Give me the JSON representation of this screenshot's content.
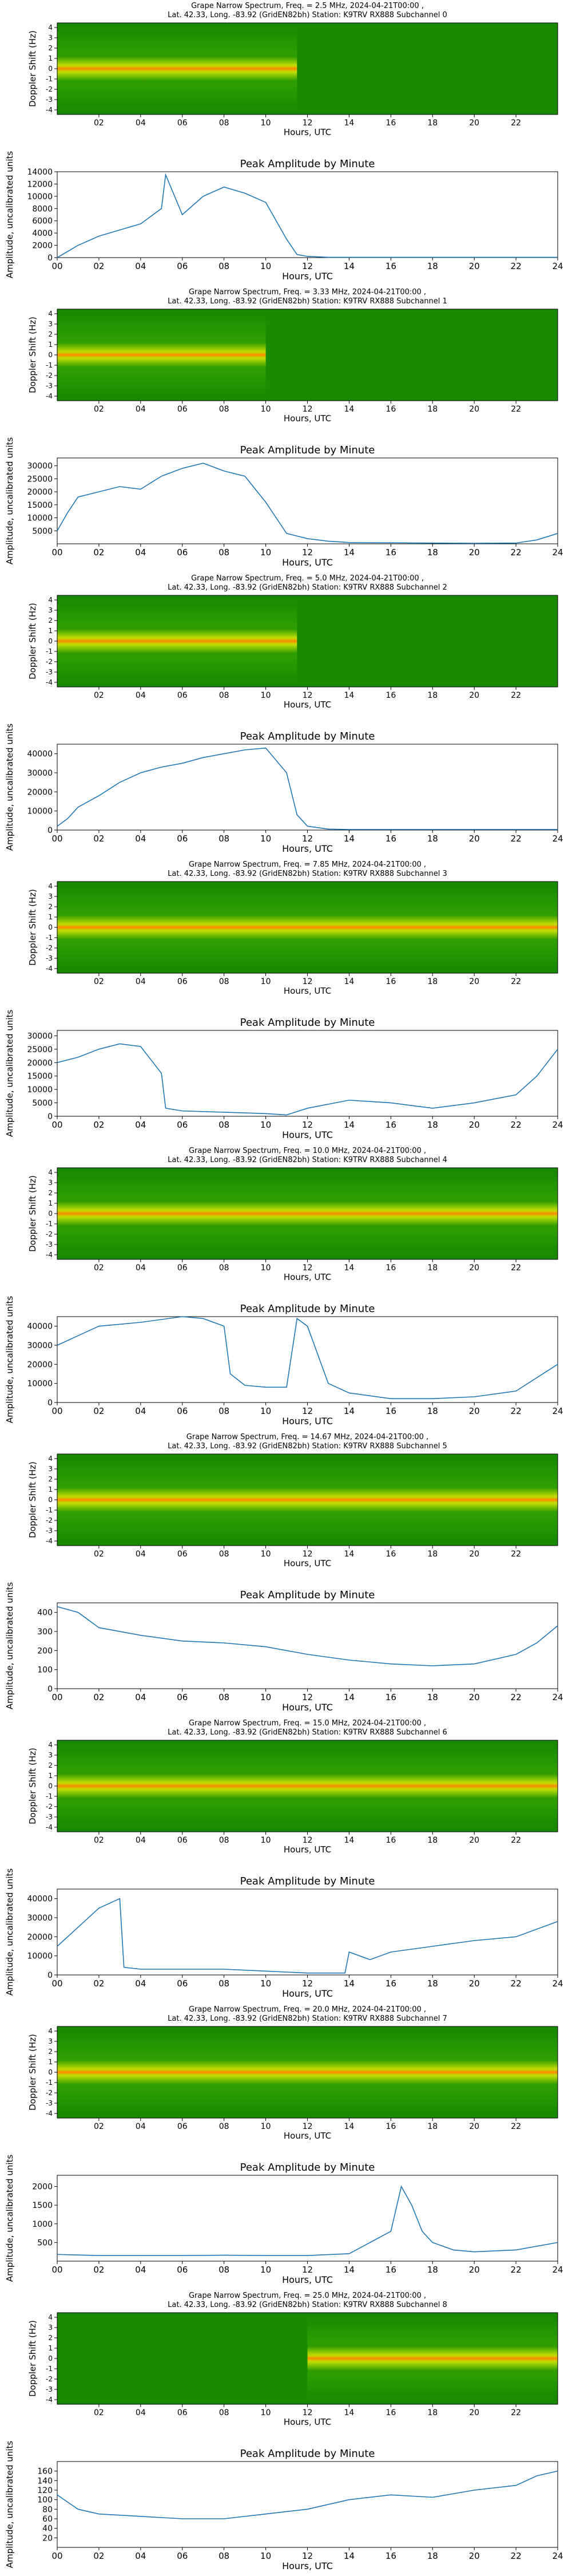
{
  "figure": {
    "station": "K9TRV RX888",
    "location": "Lat.  42.33, Long. -83.92 (GridEN82bh)",
    "date": "2024-04-21T00:00"
  },
  "colors": {
    "spectro_bg": "#1a8a00",
    "spectro_band": "#e6e600",
    "spectro_peak": "#ff8c00",
    "line": "#1f77b4",
    "axis": "#000000"
  },
  "chart_data": [
    {
      "type": "heatmap",
      "title_line1": "Grape Narrow Spectrum, Freq. = 2.5 MHz, 2024-04-21T00:00 ,",
      "title_line2": "Lat.  42.33, Long. -83.92 (GridEN82bh) Station: K9TRV RX888 Subchannel 0",
      "xlabel": "Hours, UTC",
      "ylabel": "Doppler Shift (Hz)",
      "x_ticks": [
        "02",
        "04",
        "06",
        "08",
        "10",
        "12",
        "14",
        "16",
        "18",
        "20",
        "22"
      ],
      "y_ticks": [
        "4",
        "3",
        "2",
        "1",
        "0",
        "-1",
        "-2",
        "-3",
        "-4"
      ],
      "xlim": [
        0,
        24
      ],
      "ylim": [
        -5,
        5
      ],
      "active_hours": [
        0,
        11.5
      ]
    },
    {
      "type": "line",
      "title": "Peak Amplitude by Minute",
      "xlabel": "Hours, UTC",
      "ylabel": "Amplitude, uncalibrated units",
      "x_ticks": [
        "00",
        "02",
        "04",
        "06",
        "08",
        "10",
        "12",
        "14",
        "16",
        "18",
        "20",
        "22",
        "24"
      ],
      "y_ticks": [
        "0",
        "2000",
        "4000",
        "6000",
        "8000",
        "10000",
        "12000",
        "14000"
      ],
      "ylim": [
        0,
        14000
      ],
      "x": [
        0,
        1,
        2,
        3,
        4,
        5,
        5.2,
        6,
        7,
        8,
        9,
        10,
        11,
        11.5,
        12,
        13,
        24
      ],
      "y": [
        0,
        2000,
        3500,
        4500,
        5500,
        8000,
        13500,
        7000,
        10000,
        11500,
        10500,
        9000,
        3000,
        500,
        200,
        50,
        50
      ]
    },
    {
      "type": "heatmap",
      "title_line1": "Grape Narrow Spectrum, Freq. = 3.33 MHz, 2024-04-21T00:00 ,",
      "title_line2": "Lat.  42.33, Long. -83.92 (GridEN82bh) Station: K9TRV RX888 Subchannel 1",
      "xlabel": "Hours, UTC",
      "ylabel": "Doppler Shift (Hz)",
      "x_ticks": [
        "02",
        "04",
        "06",
        "08",
        "10",
        "12",
        "14",
        "16",
        "18",
        "20",
        "22"
      ],
      "y_ticks": [
        "4",
        "3",
        "2",
        "1",
        "0",
        "-1",
        "-2",
        "-3",
        "-4"
      ],
      "xlim": [
        0,
        24
      ],
      "ylim": [
        -5,
        5
      ],
      "active_hours": [
        0,
        10
      ]
    },
    {
      "type": "line",
      "title": "Peak Amplitude by Minute",
      "xlabel": "Hours, UTC",
      "ylabel": "Amplitude, uncalibrated units",
      "x_ticks": [
        "00",
        "02",
        "04",
        "06",
        "08",
        "10",
        "12",
        "14",
        "16",
        "18",
        "20",
        "22",
        "24"
      ],
      "y_ticks": [
        "5000",
        "10000",
        "15000",
        "20000",
        "25000",
        "30000"
      ],
      "ylim": [
        0,
        33000
      ],
      "x": [
        0,
        0.5,
        1,
        2,
        3,
        4,
        5,
        6,
        7,
        8,
        9,
        10,
        11,
        12,
        13,
        14,
        20,
        22,
        23,
        24
      ],
      "y": [
        5000,
        12000,
        18000,
        20000,
        22000,
        21000,
        26000,
        29000,
        31000,
        28000,
        26000,
        16000,
        4000,
        2000,
        1000,
        500,
        200,
        300,
        1500,
        4000
      ]
    },
    {
      "type": "heatmap",
      "title_line1": "Grape Narrow Spectrum, Freq. = 5.0 MHz, 2024-04-21T00:00 ,",
      "title_line2": "Lat.  42.33, Long. -83.92 (GridEN82bh) Station: K9TRV RX888 Subchannel 2",
      "xlabel": "Hours, UTC",
      "ylabel": "Doppler Shift (Hz)",
      "x_ticks": [
        "02",
        "04",
        "06",
        "08",
        "10",
        "12",
        "14",
        "16",
        "18",
        "20",
        "22"
      ],
      "y_ticks": [
        "4",
        "3",
        "2",
        "1",
        "0",
        "-1",
        "-2",
        "-3",
        "-4"
      ],
      "xlim": [
        0,
        24
      ],
      "ylim": [
        -5,
        5
      ],
      "active_hours": [
        0,
        11.5
      ]
    },
    {
      "type": "line",
      "title": "Peak Amplitude by Minute",
      "xlabel": "Hours, UTC",
      "ylabel": "Amplitude, uncalibrated units",
      "x_ticks": [
        "00",
        "02",
        "04",
        "06",
        "08",
        "10",
        "12",
        "14",
        "16",
        "18",
        "20",
        "22",
        "24"
      ],
      "y_ticks": [
        "0",
        "10000",
        "20000",
        "30000",
        "40000"
      ],
      "ylim": [
        0,
        45000
      ],
      "x": [
        0,
        0.5,
        1,
        2,
        3,
        4,
        5,
        6,
        7,
        8,
        9,
        10,
        11,
        11.5,
        12,
        13,
        14,
        24
      ],
      "y": [
        2000,
        6000,
        12000,
        18000,
        25000,
        30000,
        33000,
        35000,
        38000,
        40000,
        42000,
        43000,
        30000,
        8000,
        2000,
        500,
        300,
        300
      ]
    },
    {
      "type": "heatmap",
      "title_line1": "Grape Narrow Spectrum, Freq. = 7.85 MHz, 2024-04-21T00:00 ,",
      "title_line2": "Lat.  42.33, Long. -83.92 (GridEN82bh) Station: K9TRV RX888 Subchannel 3",
      "xlabel": "Hours, UTC",
      "ylabel": "Doppler Shift (Hz)",
      "x_ticks": [
        "02",
        "04",
        "06",
        "08",
        "10",
        "12",
        "14",
        "16",
        "18",
        "20",
        "22"
      ],
      "y_ticks": [
        "4",
        "3",
        "2",
        "1",
        "0",
        "-1",
        "-2",
        "-3",
        "-4"
      ],
      "xlim": [
        0,
        24
      ],
      "ylim": [
        -5,
        5
      ],
      "active_hours": [
        0,
        24
      ]
    },
    {
      "type": "line",
      "title": "Peak Amplitude by Minute",
      "xlabel": "Hours, UTC",
      "ylabel": "Amplitude, uncalibrated units",
      "x_ticks": [
        "00",
        "02",
        "04",
        "06",
        "08",
        "10",
        "12",
        "14",
        "16",
        "18",
        "20",
        "22",
        "24"
      ],
      "y_ticks": [
        "0",
        "5000",
        "10000",
        "15000",
        "20000",
        "25000",
        "30000"
      ],
      "ylim": [
        0,
        32000
      ],
      "x": [
        0,
        1,
        2,
        3,
        4,
        5,
        5.2,
        6,
        8,
        10,
        11,
        12,
        14,
        16,
        18,
        20,
        22,
        23,
        24
      ],
      "y": [
        20000,
        22000,
        25000,
        27000,
        26000,
        16000,
        3000,
        2000,
        1500,
        1000,
        500,
        3000,
        6000,
        5000,
        3000,
        5000,
        8000,
        15000,
        25000
      ]
    },
    {
      "type": "heatmap",
      "title_line1": "Grape Narrow Spectrum, Freq. = 10.0 MHz, 2024-04-21T00:00 ,",
      "title_line2": "Lat.  42.33, Long. -83.92 (GridEN82bh) Station: K9TRV RX888 Subchannel 4",
      "xlabel": "Hours, UTC",
      "ylabel": "Doppler Shift (Hz)",
      "x_ticks": [
        "02",
        "04",
        "06",
        "08",
        "10",
        "12",
        "14",
        "16",
        "18",
        "20",
        "22"
      ],
      "y_ticks": [
        "4",
        "3",
        "2",
        "1",
        "0",
        "-1",
        "-2",
        "-3",
        "-4"
      ],
      "xlim": [
        0,
        24
      ],
      "ylim": [
        -5,
        5
      ],
      "active_hours": [
        0,
        24
      ]
    },
    {
      "type": "line",
      "title": "Peak Amplitude by Minute",
      "xlabel": "Hours, UTC",
      "ylabel": "Amplitude, uncalibrated units",
      "x_ticks": [
        "00",
        "02",
        "04",
        "06",
        "08",
        "10",
        "12",
        "14",
        "16",
        "18",
        "20",
        "22",
        "24"
      ],
      "y_ticks": [
        "0",
        "10000",
        "20000",
        "30000",
        "40000"
      ],
      "ylim": [
        0,
        45000
      ],
      "x": [
        0,
        1,
        2,
        4,
        6,
        7,
        8,
        8.3,
        9,
        10,
        11,
        11.5,
        12,
        13,
        14,
        16,
        18,
        20,
        22,
        24
      ],
      "y": [
        30000,
        35000,
        40000,
        42000,
        45000,
        44000,
        40000,
        15000,
        9000,
        8000,
        8000,
        44000,
        40000,
        10000,
        5000,
        2000,
        2000,
        3000,
        6000,
        20000
      ]
    },
    {
      "type": "heatmap",
      "title_line1": "Grape Narrow Spectrum, Freq. = 14.67 MHz, 2024-04-21T00:00 ,",
      "title_line2": "Lat.  42.33, Long. -83.92 (GridEN82bh) Station: K9TRV RX888 Subchannel 5",
      "xlabel": "Hours, UTC",
      "ylabel": "Doppler Shift (Hz)",
      "x_ticks": [
        "02",
        "04",
        "06",
        "08",
        "10",
        "12",
        "14",
        "16",
        "18",
        "20",
        "22"
      ],
      "y_ticks": [
        "4",
        "3",
        "2",
        "1",
        "0",
        "-1",
        "-2",
        "-3",
        "-4"
      ],
      "xlim": [
        0,
        24
      ],
      "ylim": [
        -5,
        5
      ],
      "active_hours": [
        0,
        24
      ]
    },
    {
      "type": "line",
      "title": "Peak Amplitude by Minute",
      "xlabel": "Hours, UTC",
      "ylabel": "Amplitude, uncalibrated units",
      "x_ticks": [
        "00",
        "02",
        "04",
        "06",
        "08",
        "10",
        "12",
        "14",
        "16",
        "18",
        "20",
        "22",
        "24"
      ],
      "y_ticks": [
        "0",
        "100",
        "200",
        "300",
        "400"
      ],
      "ylim": [
        0,
        450
      ],
      "x": [
        0,
        1,
        2,
        4,
        6,
        8,
        10,
        12,
        14,
        16,
        18,
        20,
        22,
        23,
        24
      ],
      "y": [
        430,
        400,
        320,
        280,
        250,
        240,
        220,
        180,
        150,
        130,
        120,
        130,
        180,
        240,
        330
      ]
    },
    {
      "type": "heatmap",
      "title_line1": "Grape Narrow Spectrum, Freq. = 15.0 MHz, 2024-04-21T00:00 ,",
      "title_line2": "Lat.  42.33, Long. -83.92 (GridEN82bh) Station: K9TRV RX888 Subchannel 6",
      "xlabel": "Hours, UTC",
      "ylabel": "Doppler Shift (Hz)",
      "x_ticks": [
        "02",
        "04",
        "06",
        "08",
        "10",
        "12",
        "14",
        "16",
        "18",
        "20",
        "22"
      ],
      "y_ticks": [
        "4",
        "3",
        "2",
        "1",
        "0",
        "-1",
        "-2",
        "-3",
        "-4"
      ],
      "xlim": [
        0,
        24
      ],
      "ylim": [
        -5,
        5
      ],
      "active_hours": [
        0,
        24
      ]
    },
    {
      "type": "line",
      "title": "Peak Amplitude by Minute",
      "xlabel": "Hours, UTC",
      "ylabel": "Amplitude, uncalibrated units",
      "x_ticks": [
        "00",
        "02",
        "04",
        "06",
        "08",
        "10",
        "12",
        "14",
        "16",
        "18",
        "20",
        "22",
        "24"
      ],
      "y_ticks": [
        "0",
        "10000",
        "20000",
        "30000",
        "40000"
      ],
      "ylim": [
        0,
        45000
      ],
      "x": [
        0,
        1,
        2,
        3,
        3.2,
        4,
        6,
        8,
        10,
        12,
        13.8,
        14,
        15,
        16,
        18,
        20,
        22,
        24
      ],
      "y": [
        15000,
        25000,
        35000,
        40000,
        4000,
        3000,
        3000,
        3000,
        2000,
        1000,
        1000,
        12000,
        8000,
        12000,
        15000,
        18000,
        20000,
        28000
      ]
    },
    {
      "type": "heatmap",
      "title_line1": "Grape Narrow Spectrum, Freq. = 20.0 MHz, 2024-04-21T00:00 ,",
      "title_line2": "Lat.  42.33, Long. -83.92 (GridEN82bh) Station: K9TRV RX888 Subchannel 7",
      "xlabel": "Hours, UTC",
      "ylabel": "Doppler Shift (Hz)",
      "x_ticks": [
        "02",
        "04",
        "06",
        "08",
        "10",
        "12",
        "14",
        "16",
        "18",
        "20",
        "22"
      ],
      "y_ticks": [
        "4",
        "3",
        "2",
        "1",
        "0",
        "-1",
        "-2",
        "-3",
        "-4"
      ],
      "xlim": [
        0,
        24
      ],
      "ylim": [
        -5,
        5
      ],
      "active_hours": [
        0,
        24
      ]
    },
    {
      "type": "line",
      "title": "Peak Amplitude by Minute",
      "xlabel": "Hours, UTC",
      "ylabel": "Amplitude, uncalibrated units",
      "x_ticks": [
        "00",
        "02",
        "04",
        "06",
        "08",
        "10",
        "12",
        "14",
        "16",
        "18",
        "20",
        "22",
        "24"
      ],
      "y_ticks": [
        "500",
        "1000",
        "1500",
        "2000"
      ],
      "ylim": [
        0,
        2300
      ],
      "x": [
        0,
        2,
        4,
        6,
        8,
        10,
        12,
        14,
        15,
        16,
        16.5,
        17,
        17.5,
        18,
        19,
        20,
        22,
        24
      ],
      "y": [
        180,
        150,
        150,
        150,
        160,
        150,
        150,
        200,
        500,
        800,
        2000,
        1500,
        800,
        500,
        300,
        250,
        300,
        500
      ]
    },
    {
      "type": "heatmap",
      "title_line1": "Grape Narrow Spectrum, Freq. = 25.0 MHz, 2024-04-21T00:00 ,",
      "title_line2": "Lat.  42.33, Long. -83.92 (GridEN82bh) Station: K9TRV RX888 Subchannel 8",
      "xlabel": "Hours, UTC",
      "ylabel": "Doppler Shift (Hz)",
      "x_ticks": [
        "02",
        "04",
        "06",
        "08",
        "10",
        "12",
        "14",
        "16",
        "18",
        "20",
        "22"
      ],
      "y_ticks": [
        "4",
        "3",
        "2",
        "1",
        "0",
        "-1",
        "-2",
        "-3",
        "-4"
      ],
      "xlim": [
        0,
        24
      ],
      "ylim": [
        -5,
        5
      ],
      "active_hours": [
        12,
        24
      ]
    },
    {
      "type": "line",
      "title": "Peak Amplitude by Minute",
      "xlabel": "Hours, UTC",
      "ylabel": "Amplitude, uncalibrated units",
      "x_ticks": [
        "00",
        "02",
        "04",
        "06",
        "08",
        "10",
        "12",
        "14",
        "16",
        "18",
        "20",
        "22",
        "24"
      ],
      "y_ticks": [
        "20",
        "40",
        "60",
        "80",
        "100",
        "120",
        "140",
        "160"
      ],
      "ylim": [
        0,
        180
      ],
      "x": [
        0,
        1,
        2,
        4,
        6,
        8,
        10,
        12,
        14,
        16,
        18,
        20,
        22,
        23,
        24
      ],
      "y": [
        110,
        80,
        70,
        65,
        60,
        60,
        70,
        80,
        100,
        110,
        105,
        120,
        130,
        150,
        160
      ]
    }
  ]
}
